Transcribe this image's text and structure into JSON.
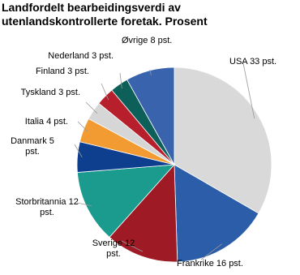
{
  "chart_data": {
    "type": "pie",
    "title": "Landfordelt bearbeidingsverdi av utenlandskontrollerte foretak. Prosent",
    "values": [
      33,
      16,
      12,
      12,
      5,
      4,
      3,
      3,
      3,
      8
    ],
    "value_labels": [
      "USA 33 pst.",
      "Frankrike 16 pst.",
      "Sverige 12 pst.",
      "Storbritannia 12 pst.",
      "Danmark 5 pst.",
      "Italia 4 pst.",
      "Tyskland 3 pst.",
      "Finland 3 pst.",
      "Nederland 3 pst.",
      "Øvrige 8 pst."
    ],
    "colors": [
      "#d9d9d9",
      "#2b5da9",
      "#9e1b25",
      "#1b9a8e",
      "#0e3f8e",
      "#f39b33",
      "#d6d6d6",
      "#b71f2d",
      "#0d5f59",
      "#3a63ae"
    ]
  }
}
